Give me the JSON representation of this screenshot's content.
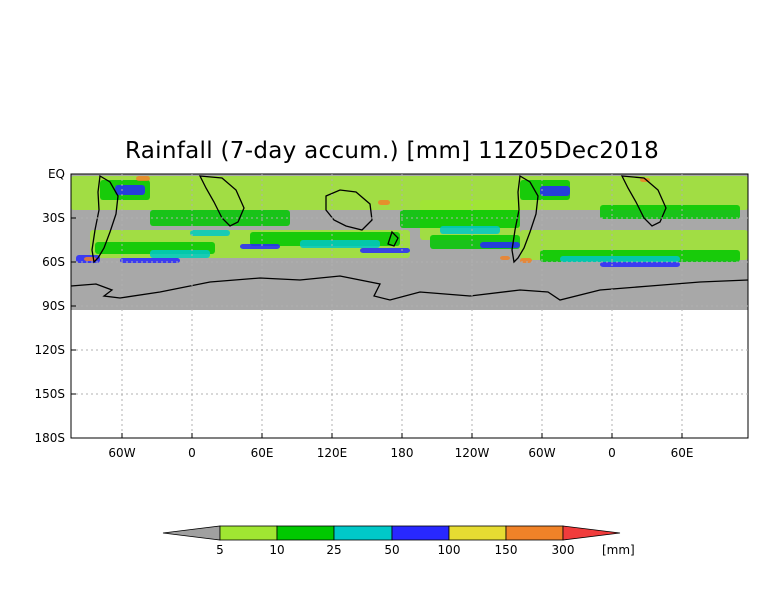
{
  "title": "Rainfall (7-day accum.) [mm] 11Z05Dec2018",
  "y_axis_labels": [
    "EQ",
    "30S",
    "60S",
    "90S",
    "120S",
    "150S",
    "180S"
  ],
  "x_axis_labels": [
    "60W",
    "0",
    "60E",
    "120E",
    "180",
    "120W",
    "60W",
    "0",
    "60E"
  ],
  "colorbar": {
    "unit": "[mm]",
    "ticks": [
      "5",
      "10",
      "25",
      "50",
      "100",
      "150",
      "300"
    ],
    "colors": [
      "#a0a0a0",
      "#a0e632",
      "#00c800",
      "#00c8c8",
      "#2828ff",
      "#e6dc32",
      "#f08228",
      "#f03c3c"
    ]
  },
  "colors": {
    "no_rain_fill": "#a8a8a8",
    "grid": "#b0b0b0"
  }
}
